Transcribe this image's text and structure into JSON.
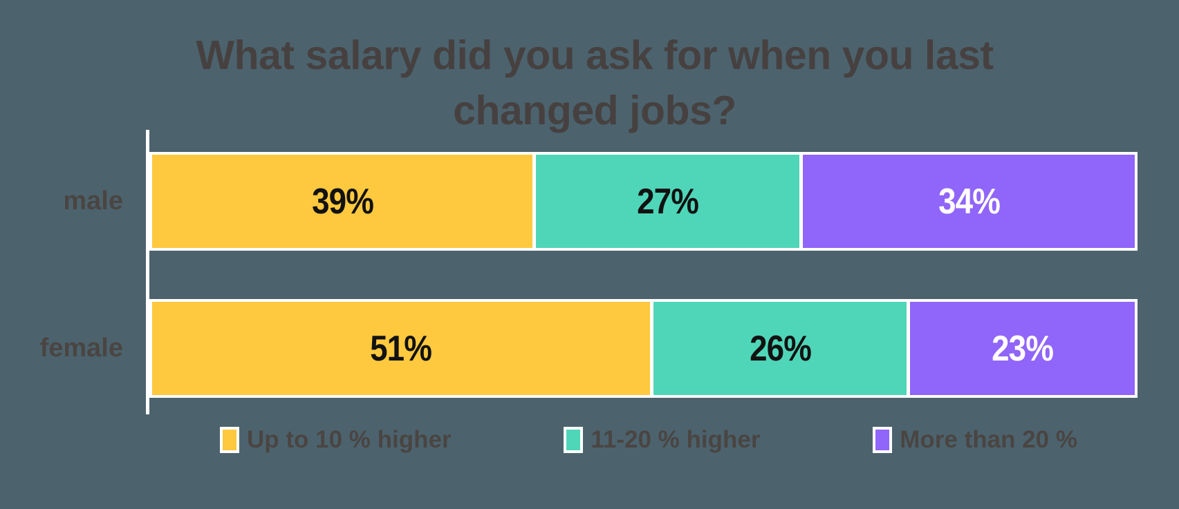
{
  "title": "What salary did you ask for when you last changed jobs?",
  "colors": {
    "background": "#4C636E",
    "axis": "#FFFFFF",
    "bar_border": "#FFFFFF",
    "title_text": "#464140",
    "category_text": "#4A4542",
    "legend_text": "#4A4542",
    "series_yellow": "#FFC93F",
    "series_teal": "#4FD6B8",
    "series_purple": "#9065FA"
  },
  "chart_data": {
    "type": "bar",
    "orientation": "horizontal",
    "stacked": true,
    "title": "What salary did you ask for when you last changed jobs?",
    "categories": [
      "male",
      "female"
    ],
    "series": [
      {
        "name": "Up to 10 % higher",
        "color": "#FFC93F",
        "values": [
          39,
          51
        ]
      },
      {
        "name": "11-20 % higher",
        "color": "#4FD6B8",
        "values": [
          27,
          26
        ]
      },
      {
        "name": "More than 20 %",
        "color": "#9065FA",
        "values": [
          34,
          23
        ]
      }
    ],
    "xlim": [
      0,
      100
    ],
    "value_label_format": "percent",
    "value_labels_shown": true,
    "legend_position": "bottom",
    "grid": false,
    "rows": [
      {
        "category": "male",
        "segments": [
          {
            "label": "39%",
            "value": 39,
            "color": "#FFC93F",
            "text_color": "#121212"
          },
          {
            "label": "27%",
            "value": 27,
            "color": "#4FD6B8",
            "text_color": "#121212"
          },
          {
            "label": "34%",
            "value": 34,
            "color": "#9065FA",
            "text_color": "#FFFFFF"
          }
        ]
      },
      {
        "category": "female",
        "segments": [
          {
            "label": "51%",
            "value": 51,
            "color": "#FFC93F",
            "text_color": "#121212"
          },
          {
            "label": "26%",
            "value": 26,
            "color": "#4FD6B8",
            "text_color": "#121212"
          },
          {
            "label": "23%",
            "value": 23,
            "color": "#9065FA",
            "text_color": "#FFFFFF"
          }
        ]
      }
    ]
  },
  "legend": {
    "items": [
      {
        "label": "Up to 10 % higher",
        "color": "#FFC93F"
      },
      {
        "label": "11-20 % higher",
        "color": "#4FD6B8"
      },
      {
        "label": "More than 20 %",
        "color": "#9065FA"
      }
    ]
  }
}
